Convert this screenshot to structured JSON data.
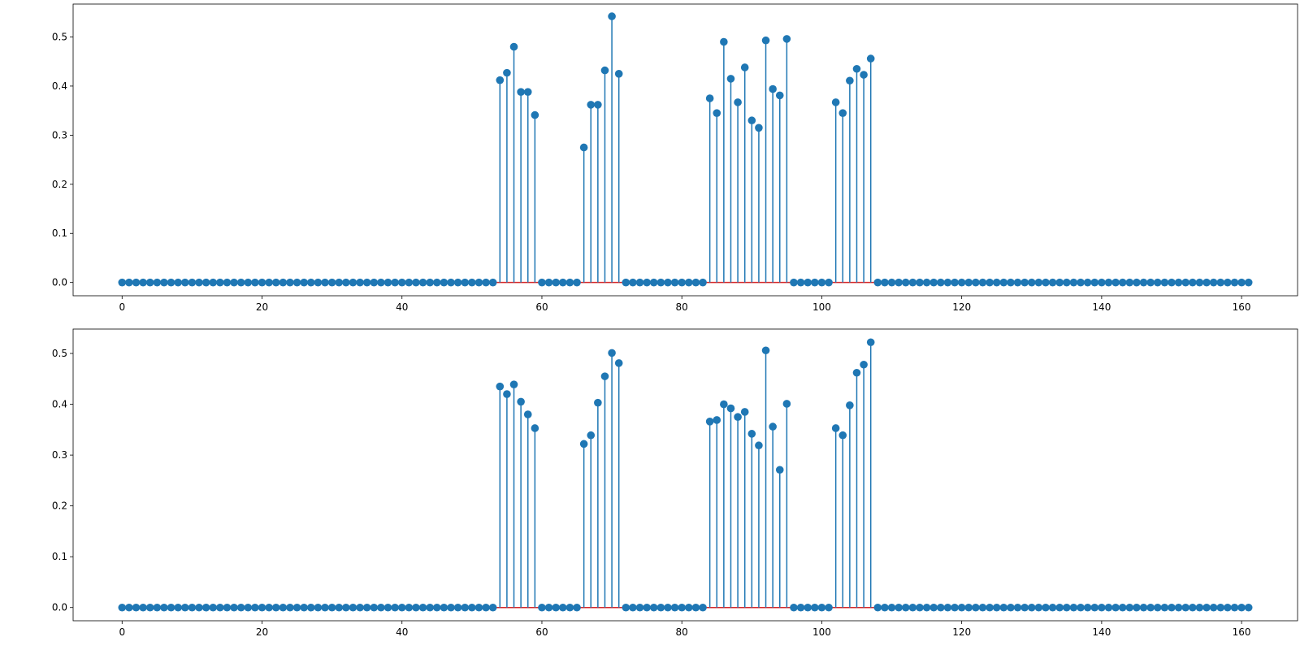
{
  "chart_data": [
    {
      "type": "stem",
      "title": "",
      "xlabel": "",
      "ylabel": "",
      "xlim": [
        -7,
        168
      ],
      "ylim": [
        -0.027,
        0.567
      ],
      "xticks": [
        0,
        20,
        40,
        60,
        80,
        100,
        120,
        140,
        160
      ],
      "xtick_labels": [
        "0",
        "20",
        "40",
        "60",
        "80",
        "100",
        "120",
        "140",
        "160"
      ],
      "yticks": [
        0.0,
        0.1,
        0.2,
        0.3,
        0.4,
        0.5
      ],
      "ytick_labels": [
        "0.0",
        "0.1",
        "0.2",
        "0.3",
        "0.4",
        "0.5"
      ],
      "n_points": 162,
      "baseline": 0.0,
      "series": [
        {
          "nonzero": [
            [
              54,
              0.412
            ],
            [
              55,
              0.427
            ],
            [
              56,
              0.48
            ],
            [
              57,
              0.388
            ],
            [
              58,
              0.388
            ],
            [
              59,
              0.341
            ],
            [
              66,
              0.275
            ],
            [
              67,
              0.362
            ],
            [
              68,
              0.362
            ],
            [
              69,
              0.432
            ],
            [
              70,
              0.542
            ],
            [
              71,
              0.425
            ],
            [
              84,
              0.375
            ],
            [
              85,
              0.345
            ],
            [
              86,
              0.49
            ],
            [
              87,
              0.415
            ],
            [
              88,
              0.367
            ],
            [
              89,
              0.438
            ],
            [
              90,
              0.33
            ],
            [
              91,
              0.315
            ],
            [
              92,
              0.493
            ],
            [
              93,
              0.394
            ],
            [
              94,
              0.381
            ],
            [
              95,
              0.496
            ],
            [
              102,
              0.367
            ],
            [
              103,
              0.345
            ],
            [
              104,
              0.411
            ],
            [
              105,
              0.435
            ],
            [
              106,
              0.423
            ],
            [
              107,
              0.456
            ]
          ]
        }
      ]
    },
    {
      "type": "stem",
      "title": "",
      "xlabel": "",
      "ylabel": "",
      "xlim": [
        -7,
        168
      ],
      "ylim": [
        -0.026,
        0.548
      ],
      "xticks": [
        0,
        20,
        40,
        60,
        80,
        100,
        120,
        140,
        160
      ],
      "xtick_labels": [
        "0",
        "20",
        "40",
        "60",
        "80",
        "100",
        "120",
        "140",
        "160"
      ],
      "yticks": [
        0.0,
        0.1,
        0.2,
        0.3,
        0.4,
        0.5
      ],
      "ytick_labels": [
        "0.0",
        "0.1",
        "0.2",
        "0.3",
        "0.4",
        "0.5"
      ],
      "n_points": 162,
      "baseline": 0.0,
      "series": [
        {
          "nonzero": [
            [
              54,
              0.435
            ],
            [
              55,
              0.42
            ],
            [
              56,
              0.439
            ],
            [
              57,
              0.405
            ],
            [
              58,
              0.38
            ],
            [
              59,
              0.353
            ],
            [
              66,
              0.322
            ],
            [
              67,
              0.339
            ],
            [
              68,
              0.403
            ],
            [
              69,
              0.455
            ],
            [
              70,
              0.501
            ],
            [
              71,
              0.481
            ],
            [
              84,
              0.366
            ],
            [
              85,
              0.369
            ],
            [
              86,
              0.4
            ],
            [
              87,
              0.392
            ],
            [
              88,
              0.375
            ],
            [
              89,
              0.385
            ],
            [
              90,
              0.342
            ],
            [
              91,
              0.319
            ],
            [
              92,
              0.506
            ],
            [
              93,
              0.356
            ],
            [
              94,
              0.271
            ],
            [
              95,
              0.401
            ],
            [
              102,
              0.353
            ],
            [
              103,
              0.339
            ],
            [
              104,
              0.398
            ],
            [
              105,
              0.462
            ],
            [
              106,
              0.478
            ],
            [
              107,
              0.522
            ]
          ]
        }
      ]
    }
  ],
  "colors": {
    "stem": "#1f77b4",
    "marker": "#1f77b4",
    "baseline": "#d62728",
    "axes": "#000000"
  }
}
